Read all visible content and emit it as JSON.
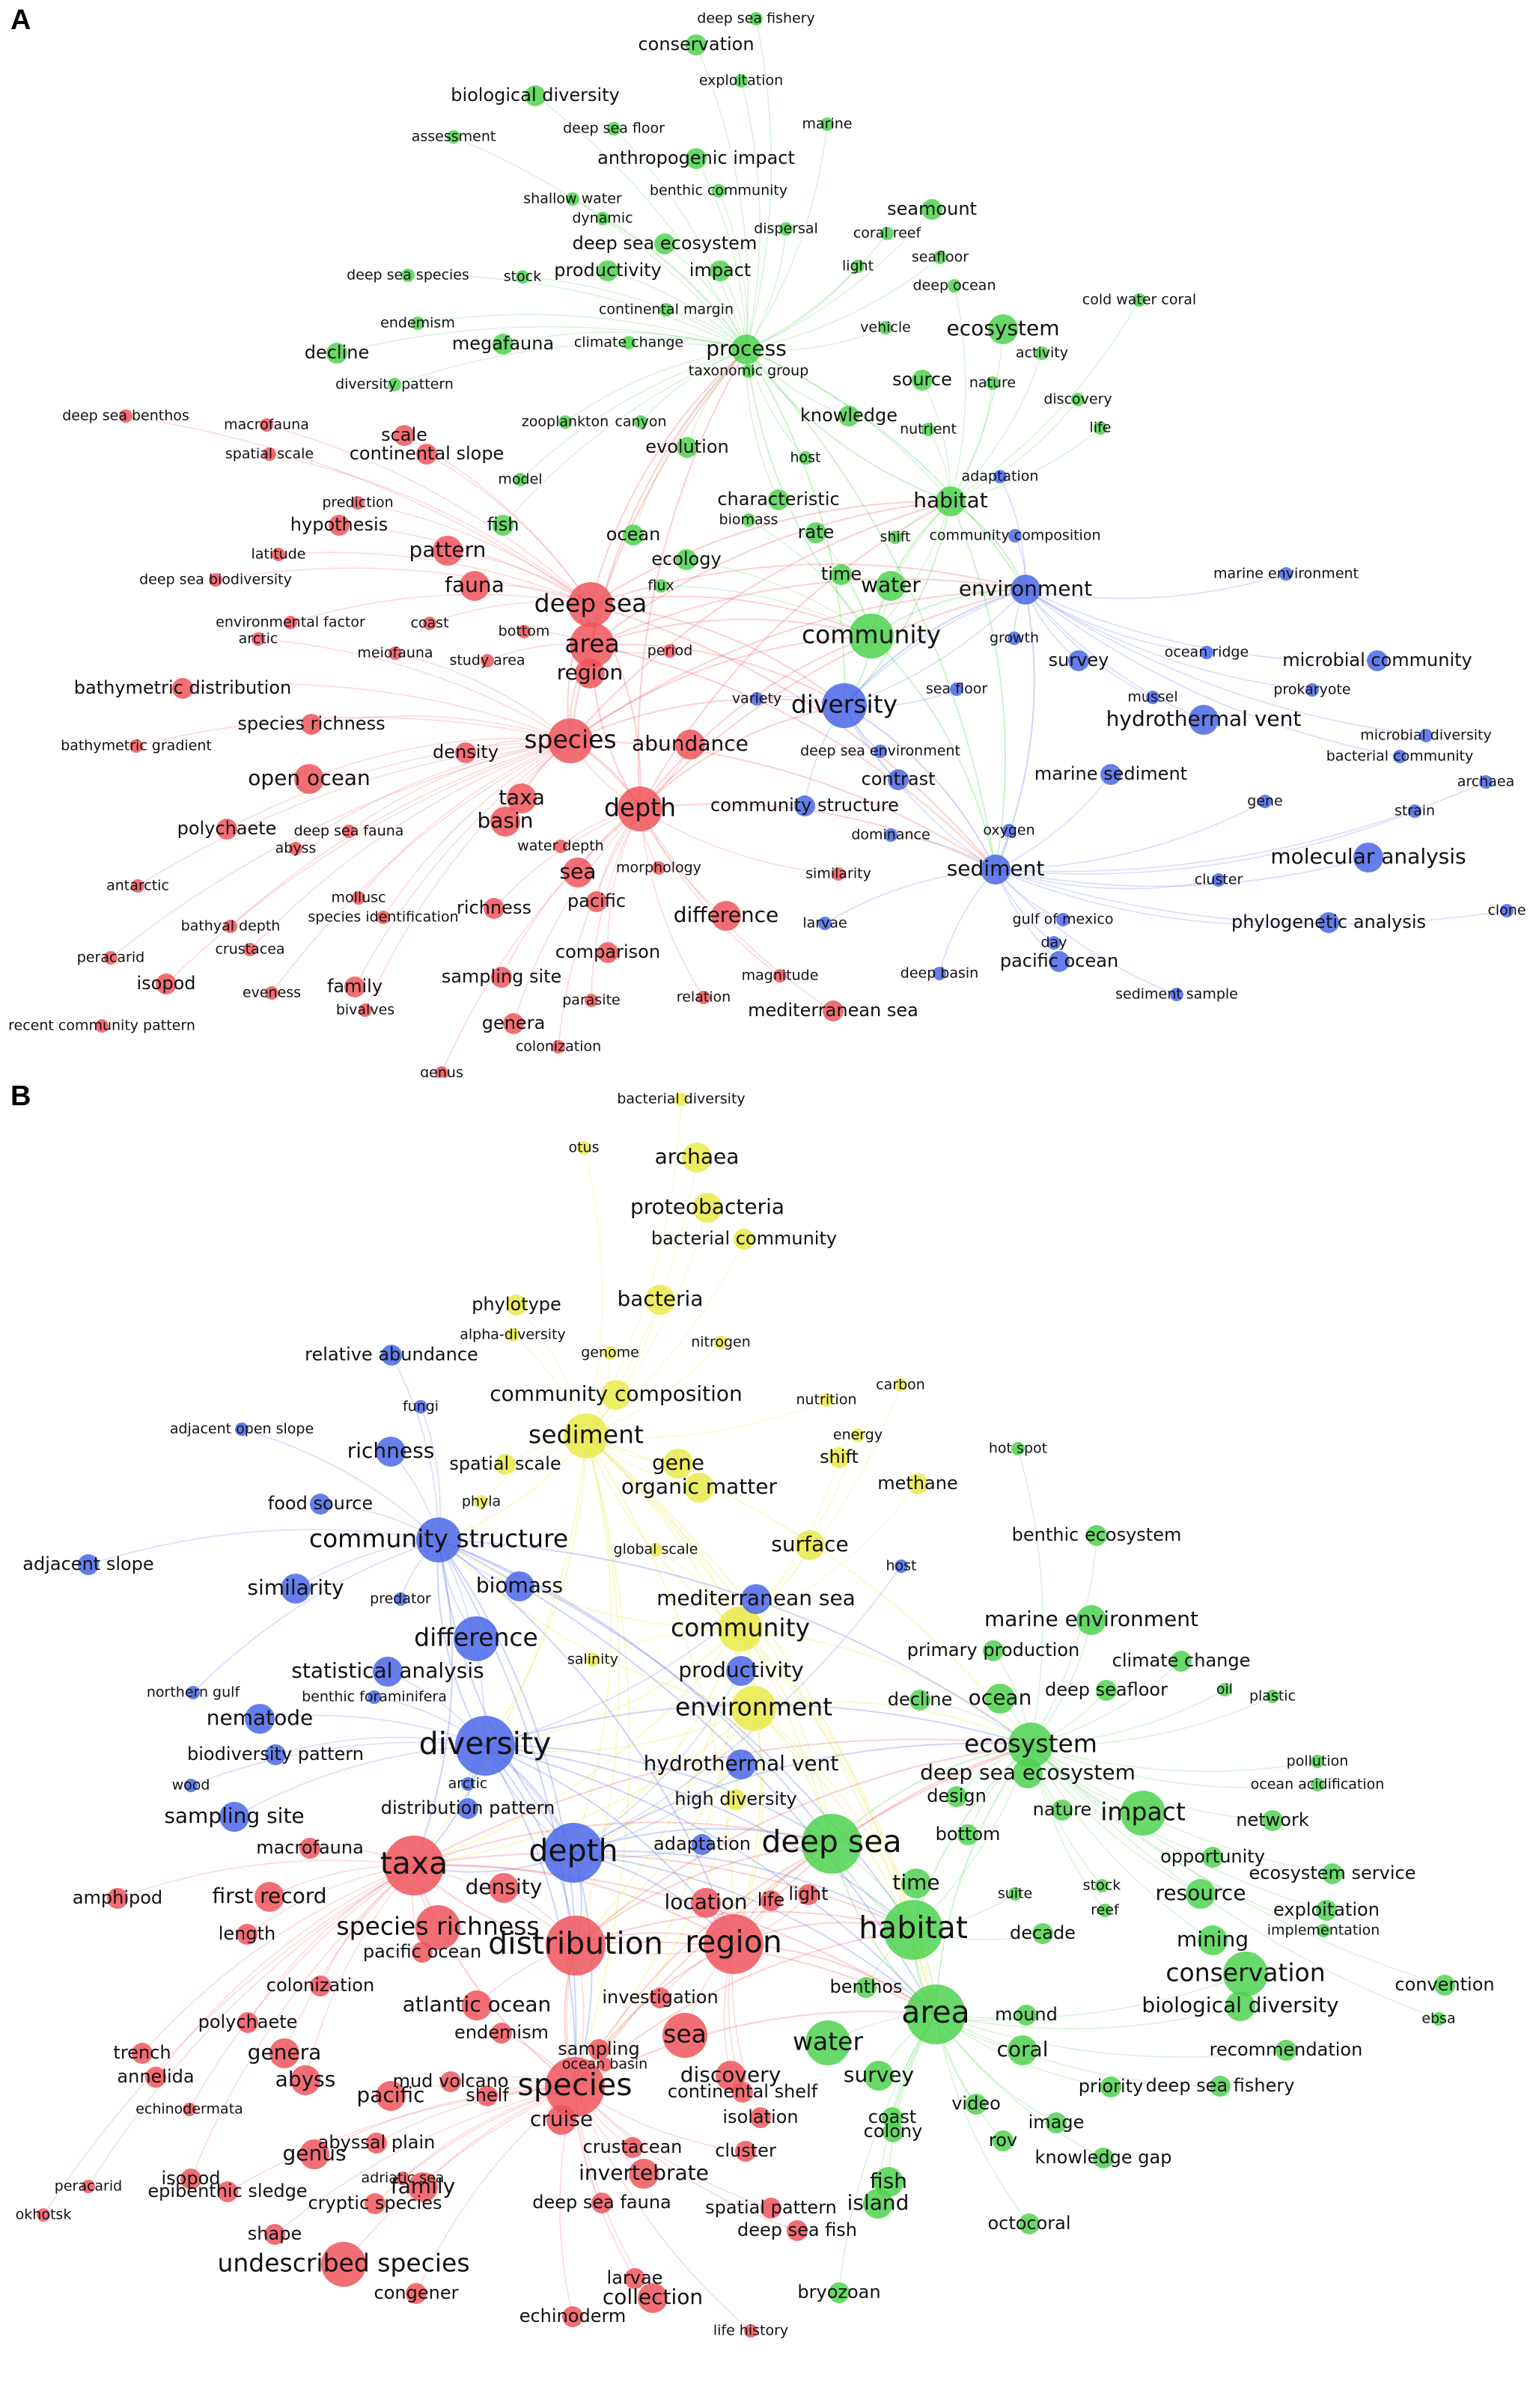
{
  "colors": {
    "red": "#f0555d",
    "green": "#4fd24f",
    "blue": "#4a67e8",
    "yellow": "#eaea4a"
  },
  "panels": [
    {
      "letter": "A",
      "clusters": {
        "red": [
          "deep sea benthos",
          "macrofauna",
          "spatial scale",
          "scale",
          "continental slope",
          "prediction",
          "hypothesis",
          "pattern",
          "fauna",
          "latitude",
          "deep sea biodiversity",
          "environmental factor",
          "arctic",
          "coast",
          "bottom",
          "meiofauna",
          "study area",
          "area",
          "region",
          "deep sea",
          "period",
          "bathymetric distribution",
          "species richness",
          "bathymetric gradient",
          "species",
          "abundance",
          "density",
          "open ocean",
          "taxa",
          "basin",
          "depth",
          "polychaete",
          "deep sea fauna",
          "abyss",
          "water depth",
          "morphology",
          "sea",
          "antarctic",
          "pacific",
          "mollusc",
          "species identification",
          "richness",
          "bathyal depth",
          "crustacea",
          "difference",
          "peracarid",
          "isopod",
          "family",
          "eveness",
          "bivalves",
          "sampling site",
          "comparison",
          "parasite",
          "genera",
          "relation",
          "magnitude",
          "mediterranean sea",
          "colonization",
          "recent community pattern",
          "genus",
          "similarity"
        ],
        "green": [
          "deep sea fishery",
          "conservation",
          "exploitation",
          "biological diversity",
          "marine",
          "assessment",
          "deep sea floor",
          "anthropogenic impact",
          "benthic community",
          "seamount",
          "shallow water",
          "dynamic",
          "dispersal",
          "coral reef",
          "deep sea ecosystem",
          "light",
          "seafloor",
          "deep sea species",
          "stock",
          "productivity",
          "impact",
          "deep ocean",
          "cold water coral",
          "continental margin",
          "endemism",
          "megafauna",
          "climate change",
          "vehicle",
          "ecosystem",
          "activity",
          "decline",
          "process",
          "taxonomic group",
          "source",
          "nature",
          "diversity pattern",
          "discovery",
          "knowledge",
          "nutrient",
          "life",
          "zooplankton",
          "canyon",
          "evolution",
          "host",
          "model",
          "characteristic",
          "habitat",
          "fish",
          "ocean",
          "biomass",
          "rate",
          "shift",
          "ecology",
          "flux",
          "time",
          "water",
          "community"
        ],
        "blue": [
          "adaptation",
          "community composition",
          "marine environment",
          "environment",
          "growth",
          "ocean ridge",
          "survey",
          "microbial community",
          "prokaryote",
          "variety",
          "diversity",
          "sea floor",
          "mussel",
          "hydrothermal vent",
          "deep sea environment",
          "microbial diversity",
          "bacterial community",
          "contrast",
          "marine sediment",
          "archaea",
          "community structure",
          "gene",
          "strain",
          "dominance",
          "oxygen",
          "molecular analysis",
          "sediment",
          "cluster",
          "clone",
          "larvae",
          "gulf of mexico",
          "day",
          "phylogenetic analysis",
          "pacific ocean",
          "deep basin",
          "sediment sample"
        ]
      }
    },
    {
      "letter": "B",
      "clusters": {
        "yellow": [
          "bacterial diversity",
          "otus",
          "archaea",
          "proteobacteria",
          "bacterial community",
          "bacteria",
          "phylotype",
          "alpha-diversity",
          "nitrogen",
          "genome",
          "community composition",
          "sediment",
          "nutrition",
          "carbon",
          "energy",
          "shift",
          "gene",
          "organic matter",
          "methane",
          "spatial scale",
          "phyla",
          "global scale",
          "surface",
          "community",
          "salinity",
          "environment",
          "high diversity"
        ],
        "blue": [
          "relative abundance",
          "fungi",
          "adjacent open slope",
          "richness",
          "food source",
          "community structure",
          "adjacent slope",
          "host",
          "similarity",
          "predator",
          "biomass",
          "mediterranean sea",
          "difference",
          "statistical analysis",
          "northern gulf",
          "benthic foraminifera",
          "productivity",
          "nematode",
          "biodiversity pattern",
          "diversity",
          "hydrothermal vent",
          "arctic",
          "distribution pattern",
          "depth",
          "adaptation",
          "wood",
          "sampling site"
        ],
        "red": [
          "macrofauna",
          "first record",
          "taxa",
          "density",
          "amphipod",
          "length",
          "species richness",
          "pacific ocean",
          "distribution",
          "region",
          "location",
          "life",
          "colonization",
          "atlantic ocean",
          "investigation",
          "polychaete",
          "endemism",
          "sea",
          "trench",
          "genera",
          "sampling",
          "ocean basin",
          "annelida",
          "abyss",
          "mud volcano",
          "pacific",
          "shelf",
          "species",
          "discovery",
          "echinodermata",
          "cruise",
          "continental shelf",
          "isolation",
          "abyssal plain",
          "genus",
          "crustacean",
          "cluster",
          "isopod",
          "adriatic sea",
          "invertebrate",
          "peracarid",
          "epibenthic sledge",
          "family",
          "okhotsk",
          "cryptic species",
          "deep sea fauna",
          "spatial pattern",
          "shape",
          "undescribed species",
          "deep sea fish",
          "congener",
          "larvae",
          "collection",
          "echinoderm",
          "life history",
          "light"
        ],
        "green": [
          "hot spot",
          "benthic ecosystem",
          "marine environment",
          "primary production",
          "climate change",
          "decline",
          "ocean",
          "deep seafloor",
          "oil",
          "plastic",
          "ecosystem",
          "pollution",
          "deep sea ecosystem",
          "ocean acidification",
          "design",
          "nature",
          "impact",
          "network",
          "bottom",
          "deep sea",
          "time",
          "opportunity",
          "stock",
          "resource",
          "ecosystem service",
          "reef",
          "suite",
          "exploitation",
          "habitat",
          "decade",
          "implementation",
          "mining",
          "conservation",
          "convention",
          "area",
          "benthos",
          "mound",
          "biological diversity",
          "ebsa",
          "coral",
          "recommendation",
          "water",
          "survey",
          "priority",
          "deep sea fishery",
          "video",
          "coast",
          "image",
          "colony",
          "rov",
          "knowledge gap",
          "fish",
          "island",
          "octocoral",
          "bryozoan"
        ]
      }
    }
  ]
}
